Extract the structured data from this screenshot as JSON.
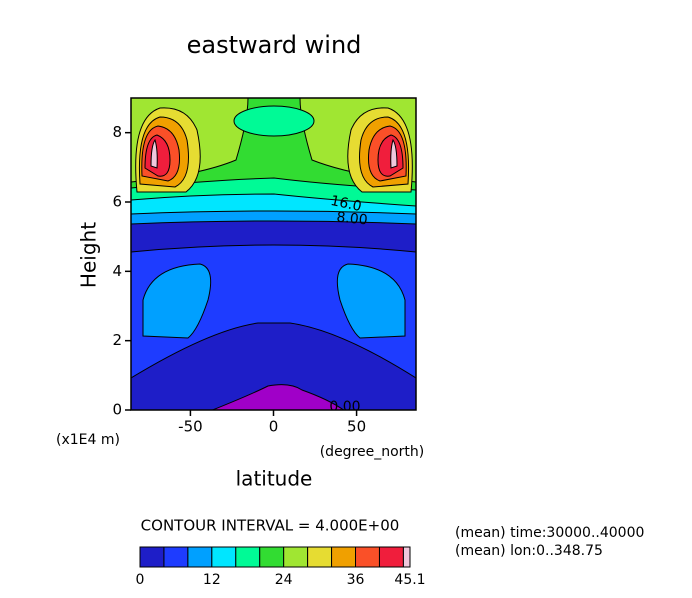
{
  "chart_data": {
    "type": "contour",
    "title": "eastward wind",
    "x_label": "latitude",
    "y_label": "Height",
    "x_unit": "(degree_north)",
    "y_unit": "(x1E4 m)",
    "xlim": [
      -85.76,
      85.76
    ],
    "xticks": [
      -50,
      0,
      50
    ],
    "ylim": [
      0,
      9
    ],
    "yticks": [
      0,
      2,
      4,
      6,
      8
    ],
    "levels": [
      0,
      4,
      8,
      12,
      16,
      20,
      24,
      28,
      32,
      36,
      40,
      44,
      45.1
    ],
    "colors": [
      "#1e1ec8",
      "#1e3cff",
      "#00a0ff",
      "#00e6ff",
      "#00fa96",
      "#32dc32",
      "#a0e632",
      "#e6dc32",
      "#f0a000",
      "#fa5028",
      "#f01e3c",
      "#f0c8dc"
    ],
    "under_color": "#a000c8",
    "colorbar_ticks": [
      0,
      12,
      24,
      36,
      45.1
    ],
    "contour_labels": [
      "16.0",
      "8.00",
      "0.00"
    ],
    "contour_interval": "CONTOUR INTERVAL = 4.000E+00",
    "notes": [
      "(mean) time:30000..40000",
      "(mean) lon:0..348.75"
    ]
  }
}
